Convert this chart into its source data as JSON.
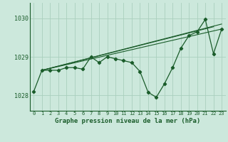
{
  "title": "Graphe pression niveau de la mer (hPa)",
  "background_color": "#cce8dc",
  "grid_color": "#aacfbe",
  "line_color": "#1a5c2a",
  "x_labels": [
    "0",
    "1",
    "2",
    "3",
    "4",
    "5",
    "6",
    "7",
    "8",
    "9",
    "10",
    "11",
    "12",
    "13",
    "14",
    "15",
    "16",
    "17",
    "18",
    "19",
    "20",
    "21",
    "22",
    "23"
  ],
  "ylim": [
    1027.6,
    1030.4
  ],
  "xlim": [
    -0.5,
    23.5
  ],
  "yticks": [
    1028,
    1029,
    1030
  ],
  "main_data": [
    1028.1,
    1028.65,
    1028.65,
    1028.65,
    1028.72,
    1028.72,
    1028.68,
    1029.0,
    1028.85,
    1029.0,
    1028.95,
    1028.9,
    1028.85,
    1028.62,
    1028.08,
    1027.95,
    1028.3,
    1028.72,
    1029.22,
    1029.55,
    1029.65,
    1029.97,
    1029.08,
    1029.72
  ]
}
